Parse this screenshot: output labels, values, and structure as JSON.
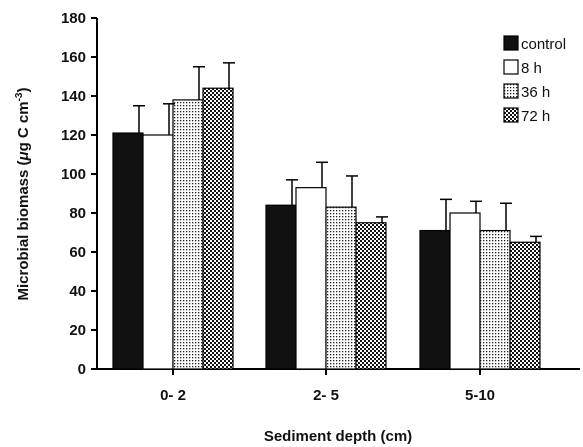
{
  "chart_data": {
    "type": "bar",
    "categories": [
      "0- 2",
      "2- 5",
      "5-10"
    ],
    "series": [
      {
        "name": "control",
        "values": [
          121,
          84,
          71
        ],
        "errors": [
          14,
          13,
          16
        ],
        "pattern": "solid"
      },
      {
        "name": "8 h",
        "values": [
          120,
          93,
          80
        ],
        "errors": [
          16,
          13,
          6
        ],
        "pattern": "white"
      },
      {
        "name": "36 h",
        "values": [
          138,
          83,
          71
        ],
        "errors": [
          17,
          16,
          14
        ],
        "pattern": "dots"
      },
      {
        "name": "72 h",
        "values": [
          144,
          75,
          65
        ],
        "errors": [
          13,
          3,
          3
        ],
        "pattern": "checker"
      }
    ],
    "xlabel": "Sediment depth (cm)",
    "ylabel": {
      "main": "Microbial biomass (",
      "mu": "μ",
      "unit": "g C cm",
      "sup": "-3",
      "close": ")"
    },
    "ylim": [
      0,
      180
    ],
    "yticks": [
      "0",
      "20",
      "40",
      "60",
      "80",
      "100",
      "120",
      "140",
      "160",
      "180"
    ],
    "grid": false,
    "legend_position": "top-right",
    "error_bars": "upper"
  }
}
